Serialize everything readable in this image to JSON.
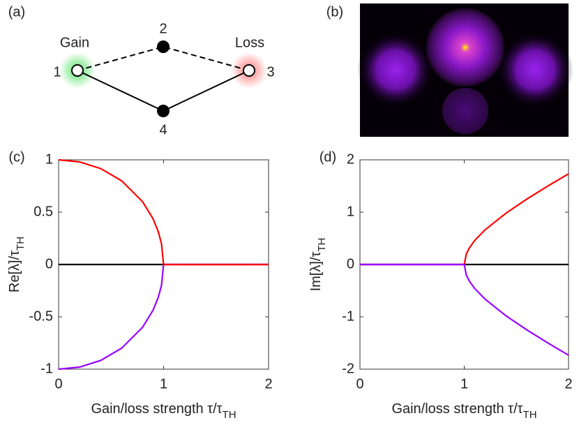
{
  "panel_labels": [
    "(a)",
    "(b)",
    "(c)",
    "(d)"
  ],
  "diagram": {
    "gain_label": "Gain",
    "loss_label": "Loss",
    "nodes": [
      {
        "label": "1"
      },
      {
        "label": "2"
      },
      {
        "label": "3"
      },
      {
        "label": "4"
      }
    ]
  },
  "chart_data": [
    {
      "type": "line",
      "xlabel": "Gain/loss strength τ/τ",
      "xlabel_sub": "TH",
      "ylabel": "Re[λ]/τ",
      "ylabel_sub": "TH",
      "x": [
        0,
        0.2,
        0.4,
        0.6,
        0.8,
        0.9,
        0.95,
        0.98,
        1,
        1.2,
        1.4,
        1.6,
        1.8,
        2
      ],
      "series": [
        {
          "color": "#000000",
          "values": [
            0,
            0,
            0,
            0,
            0,
            0,
            0,
            0,
            0,
            0,
            0,
            0,
            0,
            0
          ]
        },
        {
          "color": "#9900ff",
          "values": [
            -1,
            -0.98,
            -0.917,
            -0.8,
            -0.6,
            -0.436,
            -0.312,
            -0.199,
            0,
            0,
            0,
            0,
            0,
            0
          ]
        },
        {
          "color": "#ff0000",
          "values": [
            1,
            0.98,
            0.917,
            0.8,
            0.6,
            0.436,
            0.312,
            0.199,
            0,
            0,
            0,
            0,
            0,
            0
          ]
        }
      ],
      "xlim": [
        0,
        2
      ],
      "xticks": [
        0,
        1,
        2
      ],
      "ylim": [
        -1,
        1
      ],
      "yticks": [
        -1,
        -0.5,
        0,
        0.5,
        1
      ]
    },
    {
      "type": "line",
      "xlabel": "Gain/loss strength τ/τ",
      "xlabel_sub": "TH",
      "ylabel": "Im[λ]/τ",
      "ylabel_sub": "TH",
      "x": [
        0,
        0.5,
        1,
        1.02,
        1.05,
        1.1,
        1.2,
        1.4,
        1.6,
        1.8,
        2
      ],
      "series": [
        {
          "color": "#000000",
          "values": [
            0,
            0,
            0,
            0,
            0,
            0,
            0,
            0,
            0,
            0,
            0
          ]
        },
        {
          "color": "#ff0000",
          "values": [
            0,
            0,
            0,
            0.201,
            0.32,
            0.458,
            0.663,
            0.98,
            1.249,
            1.497,
            1.732
          ]
        },
        {
          "color": "#9900ff",
          "values": [
            0,
            0,
            0,
            -0.201,
            -0.32,
            -0.458,
            -0.663,
            -0.98,
            -1.249,
            -1.497,
            -1.732
          ]
        }
      ],
      "xlim": [
        0,
        2
      ],
      "xticks": [
        0,
        1,
        2
      ],
      "ylim": [
        -2,
        2
      ],
      "yticks": [
        -2,
        -1,
        0,
        1,
        2
      ]
    }
  ]
}
